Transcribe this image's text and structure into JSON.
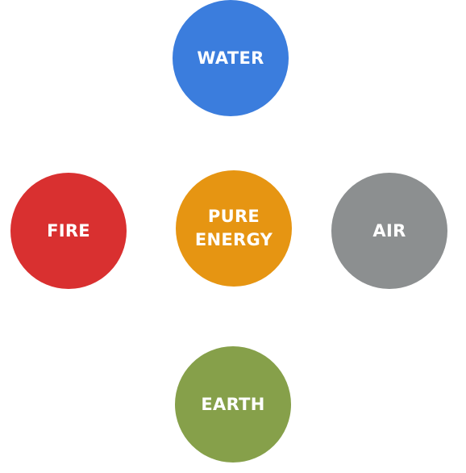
{
  "elements": {
    "water": {
      "label": "WATER",
      "color": "#3b7ddd"
    },
    "fire": {
      "label": "FIRE",
      "color": "#d93030"
    },
    "center": {
      "label_line1": "PURE",
      "label_line2": "ENERGY",
      "color": "#e69512"
    },
    "air": {
      "label": "AIR",
      "color": "#8c8f90"
    },
    "earth": {
      "label": "EARTH",
      "color": "#86a04a"
    }
  }
}
